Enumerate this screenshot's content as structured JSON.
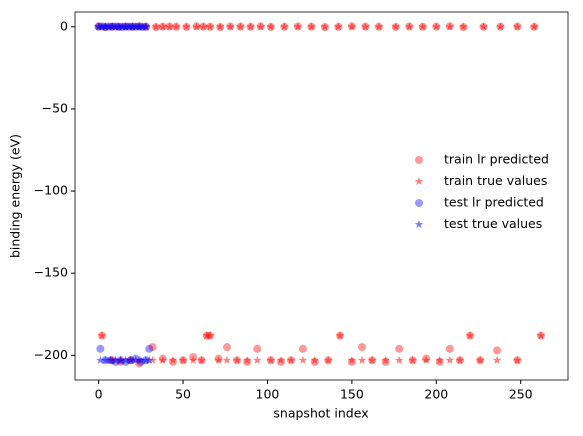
{
  "chart_data": {
    "type": "scatter",
    "xlabel": "snapshot index",
    "ylabel": "binding energy (eV)",
    "xlim": [
      -14,
      278
    ],
    "ylim": [
      -215,
      9
    ],
    "xticks": [
      0,
      50,
      100,
      150,
      200,
      250
    ],
    "yticks": [
      {
        "value": 0,
        "label": "0"
      },
      {
        "value": -50,
        "label": "−50"
      },
      {
        "value": -100,
        "label": "−100"
      },
      {
        "value": -150,
        "label": "−150"
      },
      {
        "value": -200,
        "label": "−200"
      }
    ],
    "legend": "center right",
    "series": [
      {
        "name": "train lr predicted",
        "color": "red",
        "marker": "circle",
        "x": [
          0,
          4,
          8,
          12,
          16,
          20,
          24,
          28,
          34,
          38,
          42,
          46,
          52,
          58,
          62,
          66,
          72,
          78,
          84,
          90,
          96,
          102,
          110,
          118,
          126,
          134,
          142,
          150,
          158,
          166,
          176,
          184,
          192,
          200,
          208,
          216,
          228,
          238,
          248,
          258,
          2,
          8,
          13,
          19,
          24,
          32,
          38,
          44,
          50,
          56,
          61,
          64,
          66,
          71,
          76,
          82,
          88,
          94,
          102,
          108,
          114,
          121,
          128,
          136,
          143,
          150,
          156,
          162,
          170,
          178,
          186,
          194,
          202,
          208,
          214,
          220,
          226,
          236,
          248,
          262
        ],
        "values": [
          0.3,
          -0.2,
          0.1,
          0,
          0.2,
          -0.1,
          0.3,
          0,
          -0.2,
          0.1,
          0.2,
          0,
          -0.1,
          0.3,
          0.1,
          0,
          -0.2,
          0.2,
          0.1,
          0,
          0.3,
          -0.1,
          0,
          0.2,
          0.1,
          -0.2,
          0,
          0.3,
          0.1,
          0,
          -0.1,
          0.2,
          0,
          0.1,
          0.3,
          -0.2,
          0,
          0.1,
          0.2,
          0,
          -188,
          -203,
          -204,
          -203,
          -205,
          -195,
          -202,
          -204,
          -203,
          -201,
          -203,
          -188,
          -188,
          -202,
          -195,
          -203,
          -204,
          -196,
          -203,
          -204,
          -203,
          -196,
          -204,
          -203,
          -188,
          -204,
          -195,
          -203,
          -204,
          -196,
          -203,
          -202,
          -204,
          -196,
          -203,
          -188,
          -203,
          -197,
          -203,
          -188
        ]
      },
      {
        "name": "train true values",
        "color": "red",
        "marker": "star",
        "x": [
          0,
          4,
          8,
          12,
          16,
          20,
          24,
          28,
          34,
          38,
          42,
          46,
          52,
          58,
          62,
          66,
          72,
          78,
          84,
          90,
          96,
          102,
          110,
          118,
          126,
          134,
          142,
          150,
          158,
          166,
          176,
          184,
          192,
          200,
          208,
          216,
          228,
          238,
          248,
          258,
          2,
          8,
          13,
          19,
          24,
          32,
          38,
          44,
          50,
          56,
          61,
          64,
          66,
          71,
          76,
          82,
          88,
          94,
          102,
          108,
          114,
          121,
          128,
          136,
          143,
          150,
          156,
          162,
          170,
          178,
          186,
          194,
          202,
          208,
          214,
          220,
          226,
          236,
          248,
          262
        ],
        "values": [
          0,
          0,
          0,
          0,
          0,
          0,
          0,
          0,
          0,
          0,
          0,
          0,
          0,
          0,
          0,
          0,
          0,
          0,
          0,
          0,
          0,
          0,
          0,
          0,
          0,
          0,
          0,
          0,
          0,
          0,
          0,
          0,
          0,
          0,
          0,
          0,
          0,
          0,
          0,
          0,
          -188,
          -203,
          -203,
          -203,
          -203,
          -203,
          -203,
          -203,
          -203,
          -203,
          -203,
          -188,
          -188,
          -203,
          -203,
          -203,
          -203,
          -203,
          -203,
          -203,
          -203,
          -203,
          -203,
          -203,
          -188,
          -203,
          -203,
          -203,
          -203,
          -203,
          -203,
          -203,
          -203,
          -203,
          -203,
          -188,
          -203,
          -203,
          -203,
          -188
        ]
      },
      {
        "name": "test lr predicted",
        "color": "blue",
        "marker": "circle",
        "x": [
          0,
          2,
          4,
          6,
          8,
          10,
          12,
          14,
          16,
          18,
          20,
          22,
          24,
          26,
          28,
          1,
          4,
          7,
          10,
          13,
          16,
          19,
          22,
          25,
          28,
          30
        ],
        "values": [
          0,
          0.2,
          -0.1,
          0.1,
          0,
          0.2,
          0,
          -0.1,
          0.1,
          0,
          0.2,
          0,
          0.1,
          -0.1,
          0,
          -196,
          -203,
          -203,
          -204,
          -203,
          -204,
          -203,
          -202,
          -204,
          -203,
          -196
        ]
      },
      {
        "name": "test true values",
        "color": "blue",
        "marker": "star",
        "x": [
          0,
          2,
          4,
          6,
          8,
          10,
          12,
          14,
          16,
          18,
          20,
          22,
          24,
          26,
          28,
          1,
          4,
          7,
          10,
          13,
          16,
          19,
          22,
          25,
          28,
          30
        ],
        "values": [
          0,
          0,
          0,
          0,
          0,
          0,
          0,
          0,
          0,
          0,
          0,
          0,
          0,
          0,
          0,
          -203,
          -203,
          -203,
          -203,
          -203,
          -203,
          -203,
          -203,
          -203,
          -203,
          -203
        ]
      }
    ]
  }
}
